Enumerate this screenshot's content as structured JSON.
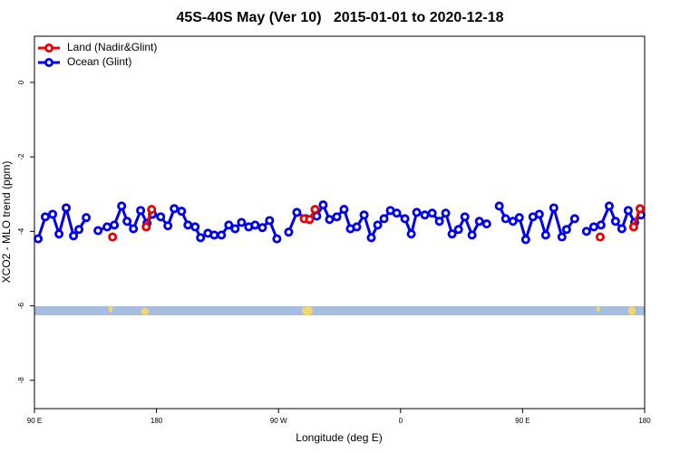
{
  "chart_data": {
    "type": "line",
    "title": "45S-40S May (Ver 10)   2015-01-01 to 2020-12-18",
    "x_label": "Longitude (deg E)",
    "y_label": "XCO2 - MLO trend (ppm)",
    "xlim": [
      90,
      540
    ],
    "ylim": [
      -8.76,
      1.24
    ],
    "xticks": [
      {
        "value": 90,
        "label": "90 E"
      },
      {
        "value": 180,
        "label": "180"
      },
      {
        "value": 270,
        "label": "90 W"
      },
      {
        "value": 360,
        "label": "0"
      },
      {
        "value": 450,
        "label": "90 E"
      },
      {
        "value": 540,
        "label": "180"
      }
    ],
    "yticks": [
      0,
      -2,
      -4,
      -6,
      -8
    ],
    "legend": "top-left",
    "series": [
      {
        "name": "Ocean (Glint)",
        "color": "#0000ee",
        "x": [
          92.7,
          98.0,
          103.4,
          108.1,
          113.4,
          118.8,
          122.8,
          128.2,
          null,
          136.9,
          143.6,
          148.9,
          154.3,
          158.3,
          163.0,
          168.3,
          173.0,
          177.0,
          183.1,
          188.4,
          193.1,
          198.5,
          203.2,
          208.5,
          212.5,
          217.9,
          222.6,
          227.9,
          233.3,
          238.0,
          242.7,
          248.0,
          252.7,
          258.1,
          263.4,
          268.8,
          null,
          277.5,
          283.5,
          290.2,
          298.2,
          302.9,
          307.6,
          313.0,
          318.3,
          323.0,
          327.7,
          333.1,
          338.4,
          343.1,
          347.8,
          352.5,
          357.2,
          363.2,
          367.9,
          371.9,
          377.9,
          383.3,
          388.6,
          393.3,
          398.0,
          402.7,
          407.4,
          412.7,
          418.1,
          423.5,
          null,
          432.8,
          437.5,
          442.9,
          447.6,
          452.3,
          457.6,
          462.3,
          467.0,
          473.0,
          479.0,
          482.4,
          488.4,
          null,
          497.1,
          502.5,
          507.8,
          513.9,
          518.5,
          523.2,
          527.9,
          532.6,
          537.3
        ],
        "values": [
          -4.2,
          -3.61,
          -3.54,
          -4.07,
          -3.37,
          -4.12,
          -3.95,
          -3.63,
          null,
          -3.98,
          -3.88,
          -3.83,
          -3.32,
          -3.73,
          -3.93,
          -3.44,
          -3.78,
          -3.54,
          -3.61,
          -3.85,
          -3.39,
          -3.46,
          -3.83,
          -3.88,
          -4.17,
          -4.05,
          -4.1,
          -4.1,
          -3.83,
          -3.93,
          -3.76,
          -3.88,
          -3.83,
          -3.9,
          -3.71,
          -4.2,
          null,
          -4.02,
          -3.49,
          -3.66,
          -3.59,
          -3.29,
          -3.68,
          -3.61,
          -3.41,
          -3.93,
          -3.88,
          -3.56,
          -4.17,
          -3.83,
          -3.66,
          -3.44,
          -3.51,
          -3.66,
          -4.07,
          -3.49,
          -3.56,
          -3.51,
          -3.73,
          -3.51,
          -4.07,
          -3.95,
          -3.61,
          -4.1,
          -3.73,
          -3.8,
          null,
          -3.32,
          -3.66,
          -3.73,
          -3.63,
          -4.22,
          -3.61,
          -3.54,
          -4.1,
          -3.37,
          -4.15,
          -3.95,
          -3.66,
          null,
          -4.0,
          -3.88,
          -3.83,
          -3.32,
          -3.73,
          -3.93,
          -3.44,
          -3.76,
          -3.56
        ]
      },
      {
        "name": "Land (Nadir&Glint)",
        "color": "#ee0000",
        "x": [
          147.6,
          null,
          172.4,
          176.4,
          null,
          288.9,
          292.9,
          296.9,
          null,
          507.2,
          null,
          531.9,
          536.6
        ],
        "values": [
          -4.15,
          null,
          -3.88,
          -3.41,
          null,
          -3.66,
          -3.68,
          -3.41,
          null,
          -4.15,
          null,
          -3.88,
          -3.39
        ]
      }
    ]
  }
}
